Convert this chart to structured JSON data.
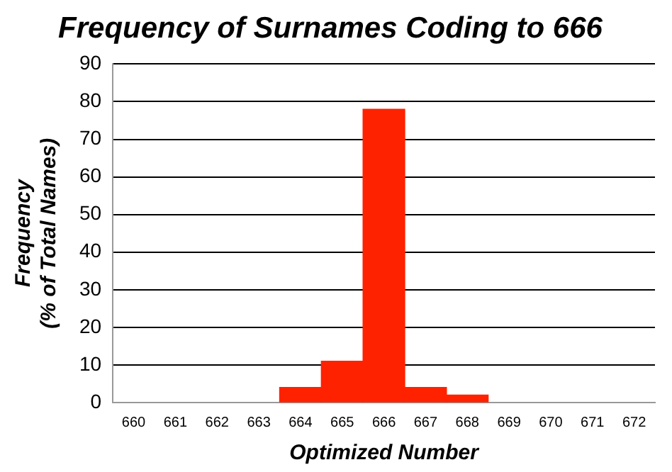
{
  "chart_data": {
    "type": "bar",
    "title": "Frequency of Surnames Coding to 666",
    "xlabel": "Optimized Number",
    "ylabel": "Frequency\n(% of Total Names)",
    "categories": [
      "660",
      "661",
      "662",
      "663",
      "664",
      "665",
      "666",
      "667",
      "668",
      "669",
      "670",
      "671",
      "672"
    ],
    "values": [
      null,
      null,
      null,
      null,
      4,
      11,
      78,
      4,
      2,
      null,
      null,
      null,
      null
    ],
    "color": "#ff2200",
    "ylim": [
      0,
      90
    ],
    "yticks": [
      0,
      10,
      20,
      30,
      40,
      50,
      60,
      70,
      80,
      90
    ],
    "grid": "y"
  }
}
